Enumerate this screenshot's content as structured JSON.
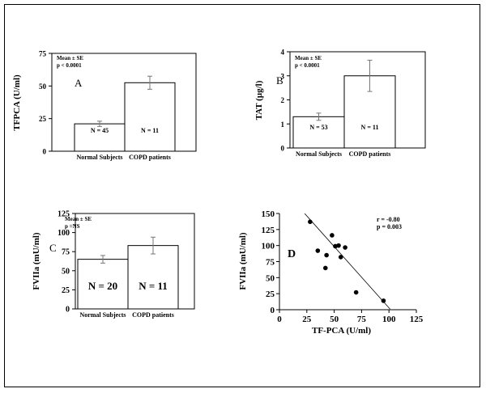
{
  "chart_data": [
    {
      "panel": "A",
      "type": "bar",
      "categories": [
        "Normal Subjects",
        "COPD patients"
      ],
      "values": [
        21,
        52.5
      ],
      "errors": [
        2,
        5
      ],
      "bar_labels": [
        "N = 45",
        "N = 11"
      ],
      "ylabel": "TFPCA  (U/ml)",
      "ylim": [
        0,
        75
      ],
      "yticks": [
        "0",
        "25",
        "50",
        "75"
      ],
      "ytick_values": [
        0,
        25,
        50,
        75
      ],
      "annotation": [
        "Mean ± SE",
        "p < 0.0001"
      ]
    },
    {
      "panel": "B",
      "type": "bar",
      "categories": [
        "Normal Subjects",
        "COPD patients"
      ],
      "values": [
        1.3,
        3.0
      ],
      "errors": [
        0.15,
        0.65
      ],
      "bar_labels": [
        "N = 53",
        "N = 11"
      ],
      "ylabel": "TAT  (µg/l)",
      "ylim": [
        0,
        4
      ],
      "yticks": [
        "0",
        "1",
        "2",
        "3",
        "4"
      ],
      "ytick_values": [
        0,
        1,
        2,
        3,
        4
      ],
      "annotation": [
        "Mean ± SE",
        "p < 0.0001"
      ]
    },
    {
      "panel": "C",
      "type": "bar",
      "categories": [
        "Normal Subjects",
        "COPD patients"
      ],
      "values": [
        65,
        83
      ],
      "errors": [
        5,
        11
      ],
      "bar_labels": [
        "N = 20",
        "N = 11"
      ],
      "ylabel": "FVIIa (mU/ml)",
      "ylim": [
        0,
        125
      ],
      "yticks": [
        "0",
        "25",
        "50",
        "75",
        "100",
        "125"
      ],
      "ytick_values": [
        0,
        25,
        50,
        75,
        100,
        125
      ],
      "annotation": [
        "Mean ± SE",
        "p =NS"
      ]
    },
    {
      "panel": "D",
      "type": "scatter",
      "x": [
        28,
        35,
        42,
        43,
        48,
        51,
        54,
        56,
        60,
        70,
        95
      ],
      "y": [
        137,
        92,
        65,
        85,
        116,
        99,
        100,
        82,
        97,
        27,
        14
      ],
      "regression": {
        "x": [
          23,
          101
        ],
        "y": [
          150,
          1
        ]
      },
      "xlabel": "TF-PCA (U/ml)",
      "ylabel": "FVIIa (mU/ml)",
      "xlim": [
        0,
        125
      ],
      "ylim": [
        0,
        150
      ],
      "xticks": [
        "0",
        "25",
        "50",
        "75",
        "100",
        "125"
      ],
      "xtick_values": [
        0,
        25,
        50,
        75,
        100,
        125
      ],
      "yticks": [
        "0",
        "25",
        "50",
        "75",
        "100",
        "125",
        "150"
      ],
      "ytick_values": [
        0,
        25,
        50,
        75,
        100,
        125,
        150
      ],
      "annotation": [
        "r = -0.80",
        "p = 0.003"
      ]
    }
  ]
}
